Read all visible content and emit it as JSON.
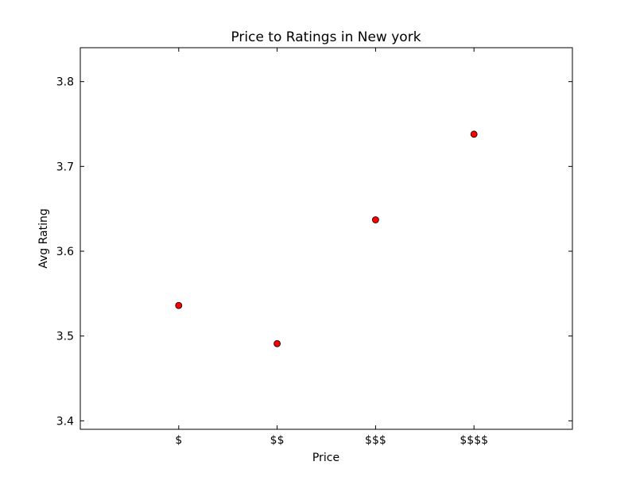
{
  "chart_data": {
    "type": "scatter",
    "title": "Price to Ratings in New york",
    "xlabel": "Price",
    "ylabel": "Avg Rating",
    "categories": [
      "$",
      "$$",
      "$$$",
      "$$$$"
    ],
    "values": [
      3.536,
      3.491,
      3.637,
      3.738
    ],
    "xlim": [
      0,
      5
    ],
    "ylim": [
      3.39,
      3.84
    ],
    "yticks": [
      3.4,
      3.5,
      3.6,
      3.7,
      3.8
    ],
    "ytick_labels": [
      "3.4",
      "3.5",
      "3.6",
      "3.7",
      "3.8"
    ],
    "grid": false,
    "marker_color": "#ff0000",
    "marker_edge": "#000000"
  }
}
